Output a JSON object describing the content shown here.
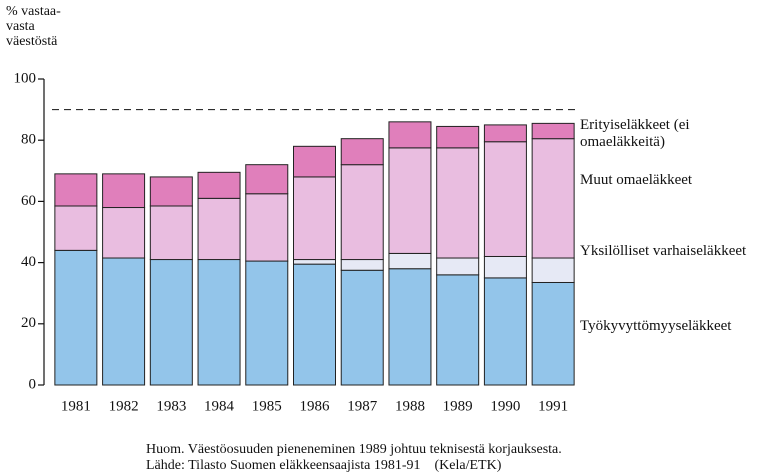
{
  "chart_data": {
    "type": "stacked_bar",
    "y_label": "% vastaa-vasta väestöstä",
    "categories": [
      "1981",
      "1982",
      "1983",
      "1984",
      "1985",
      "1986",
      "1987",
      "1988",
      "1989",
      "1990",
      "1991"
    ],
    "series": [
      {
        "name": "Työkyvyttömyyseläkkeet",
        "color": "#93c5ea",
        "values": [
          44,
          41.5,
          41,
          41,
          40.5,
          39.5,
          37.5,
          38,
          36,
          35,
          33.5
        ]
      },
      {
        "name": "Yksilölliset varhaiseläkkeet",
        "color": "#e6e9f5",
        "values": [
          0,
          0,
          0,
          0,
          0,
          1.5,
          3.5,
          5,
          5.5,
          7,
          8
        ]
      },
      {
        "name": "Muut omaeläkkeet",
        "color": "#e9bde0",
        "values": [
          14.5,
          16.5,
          17.5,
          20,
          22,
          27,
          31,
          34.5,
          36,
          37.5,
          39
        ]
      },
      {
        "name": "Erityiseläkkeet (ei omaeläkkeitä)",
        "color": "#e07fbb",
        "values": [
          10.5,
          11,
          9.5,
          8.5,
          9.5,
          10,
          8.5,
          8.5,
          7,
          5.5,
          5
        ]
      }
    ],
    "reference_line": 90,
    "ylim": [
      0,
      100
    ],
    "yticks": [
      0,
      20,
      40,
      60,
      80,
      100
    ],
    "notes": [
      "Huom. Väestöosuuden pieneneminen 1989 johtuu teknisestä korjauksesta.",
      "Lähde: Tilasto Suomen eläkkeensaajista 1981-91    (Kela/ETK)"
    ]
  }
}
